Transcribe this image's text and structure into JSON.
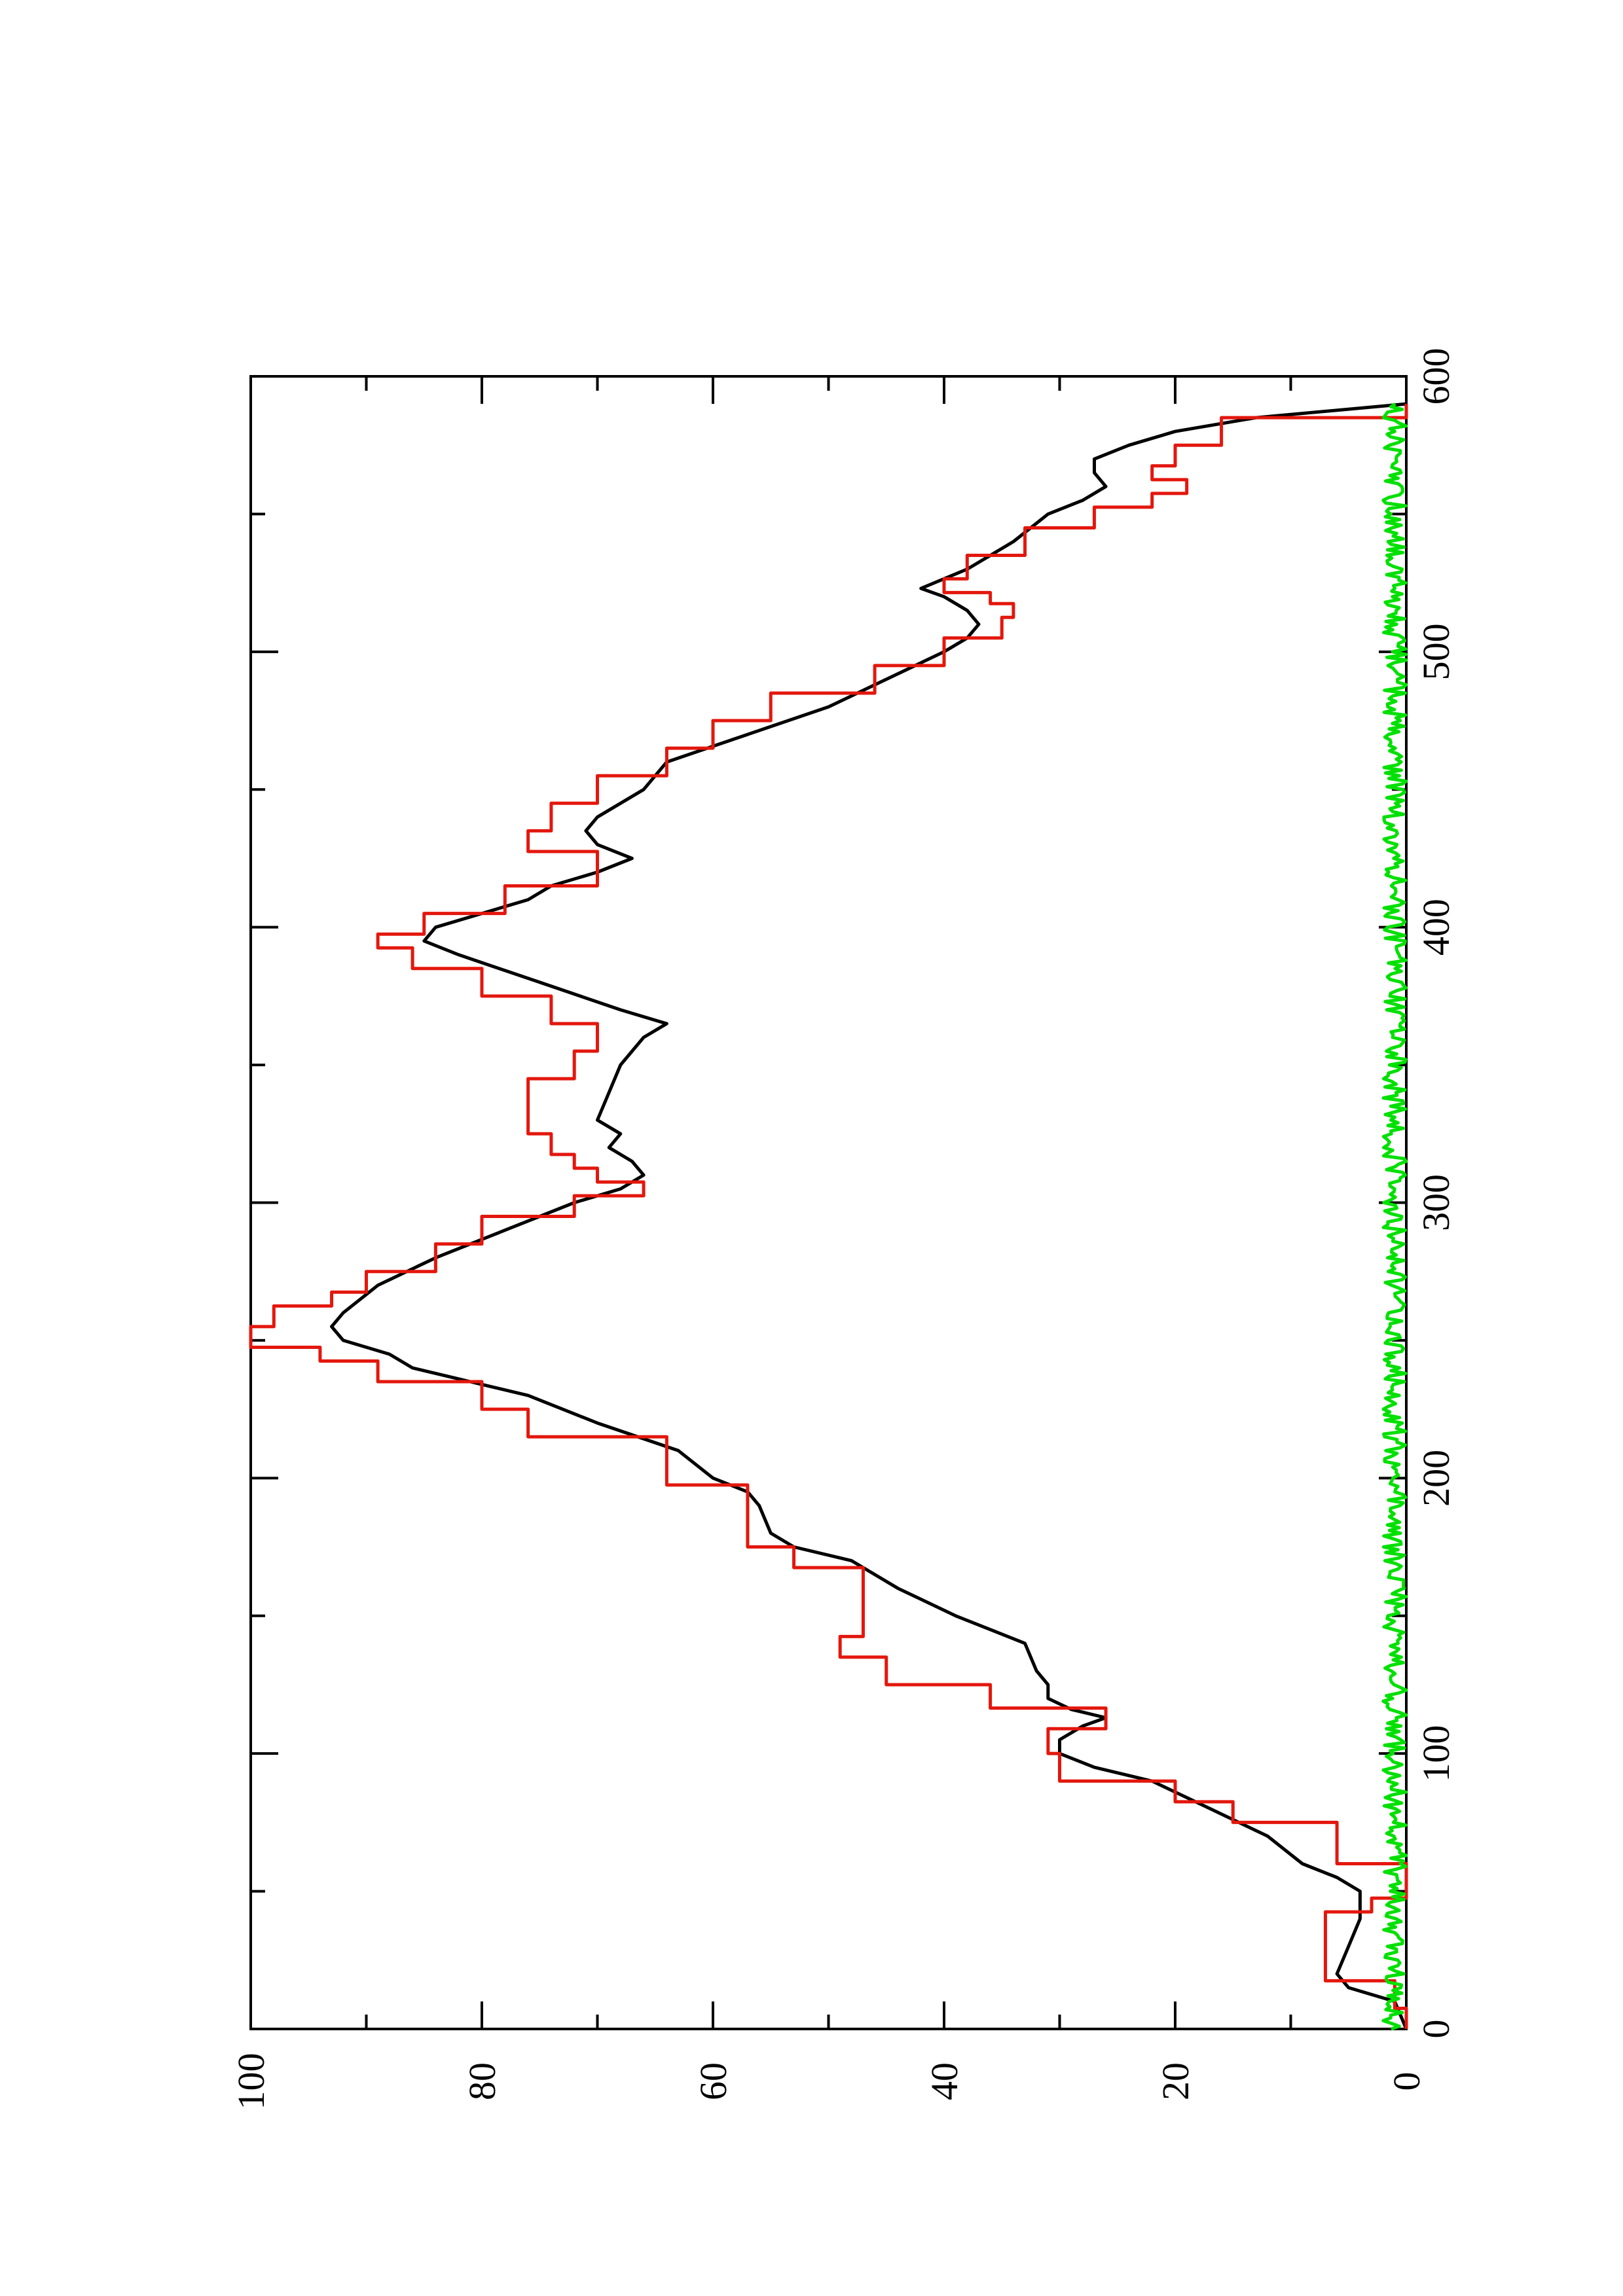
{
  "chart_data": {
    "type": "line",
    "orientation": "rotated-90-clockwise",
    "title": "",
    "xlabel": "",
    "ylabel": "",
    "xlim": [
      0,
      600
    ],
    "ylim": [
      0,
      100
    ],
    "x_ticks": [
      "0",
      "100",
      "200",
      "300",
      "400",
      "500",
      "600"
    ],
    "y_ticks": [
      "0",
      "20",
      "40",
      "60",
      "80",
      "100"
    ],
    "grid": false,
    "legend": "none",
    "series": [
      {
        "color": "#000000",
        "style": "smooth",
        "points": [
          [
            0,
            0
          ],
          [
            10,
            1
          ],
          [
            15,
            5
          ],
          [
            20,
            6
          ],
          [
            30,
            5
          ],
          [
            40,
            4
          ],
          [
            50,
            4
          ],
          [
            55,
            6
          ],
          [
            60,
            9
          ],
          [
            70,
            12
          ],
          [
            80,
            17
          ],
          [
            90,
            22
          ],
          [
            95,
            27
          ],
          [
            100,
            30
          ],
          [
            105,
            30
          ],
          [
            110,
            28
          ],
          [
            113,
            26
          ],
          [
            116,
            29
          ],
          [
            120,
            31
          ],
          [
            125,
            31
          ],
          [
            130,
            32
          ],
          [
            140,
            33
          ],
          [
            150,
            39
          ],
          [
            160,
            44
          ],
          [
            170,
            48
          ],
          [
            175,
            53
          ],
          [
            180,
            55
          ],
          [
            190,
            56
          ],
          [
            195,
            57
          ],
          [
            200,
            60
          ],
          [
            210,
            63
          ],
          [
            220,
            70
          ],
          [
            230,
            76
          ],
          [
            240,
            86
          ],
          [
            245,
            88
          ],
          [
            250,
            92
          ],
          [
            255,
            93
          ],
          [
            260,
            92
          ],
          [
            270,
            89
          ],
          [
            280,
            84
          ],
          [
            290,
            78
          ],
          [
            300,
            72
          ],
          [
            305,
            68
          ],
          [
            310,
            66
          ],
          [
            315,
            67
          ],
          [
            320,
            69
          ],
          [
            325,
            68
          ],
          [
            330,
            70
          ],
          [
            340,
            69
          ],
          [
            350,
            68
          ],
          [
            360,
            66
          ],
          [
            365,
            64
          ],
          [
            370,
            68
          ],
          [
            380,
            75
          ],
          [
            390,
            82
          ],
          [
            395,
            85
          ],
          [
            400,
            84
          ],
          [
            410,
            76
          ],
          [
            415,
            74
          ],
          [
            420,
            70
          ],
          [
            425,
            67
          ],
          [
            430,
            70
          ],
          [
            435,
            71
          ],
          [
            440,
            70
          ],
          [
            450,
            66
          ],
          [
            460,
            64
          ],
          [
            470,
            57
          ],
          [
            480,
            50
          ],
          [
            490,
            45
          ],
          [
            500,
            40
          ],
          [
            505,
            38
          ],
          [
            510,
            37
          ],
          [
            515,
            38
          ],
          [
            520,
            40
          ],
          [
            523,
            42
          ],
          [
            530,
            38
          ],
          [
            540,
            34
          ],
          [
            550,
            31
          ],
          [
            555,
            28
          ],
          [
            560,
            26
          ],
          [
            565,
            27
          ],
          [
            570,
            27
          ],
          [
            575,
            24
          ],
          [
            580,
            20
          ],
          [
            585,
            13
          ],
          [
            590,
            0
          ]
        ]
      },
      {
        "color": "#e3170d",
        "style": "steps",
        "points": [
          [
            0,
            0
          ],
          [
            15,
            1
          ],
          [
            20,
            7
          ],
          [
            40,
            7
          ],
          [
            45,
            3
          ],
          [
            50,
            0
          ],
          [
            70,
            6
          ],
          [
            80,
            15
          ],
          [
            85,
            20
          ],
          [
            95,
            30
          ],
          [
            105,
            31
          ],
          [
            113,
            26
          ],
          [
            120,
            36
          ],
          [
            130,
            45
          ],
          [
            140,
            49
          ],
          [
            145,
            47
          ],
          [
            165,
            47
          ],
          [
            170,
            53
          ],
          [
            180,
            57
          ],
          [
            195,
            57
          ],
          [
            200,
            64
          ],
          [
            210,
            64
          ],
          [
            220,
            76
          ],
          [
            230,
            80
          ],
          [
            240,
            89
          ],
          [
            245,
            94
          ],
          [
            250,
            100
          ],
          [
            260,
            98
          ],
          [
            265,
            93
          ],
          [
            270,
            90
          ],
          [
            280,
            84
          ],
          [
            290,
            80
          ],
          [
            300,
            72
          ],
          [
            305,
            66
          ],
          [
            310,
            70
          ],
          [
            315,
            72
          ],
          [
            320,
            74
          ],
          [
            330,
            76
          ],
          [
            340,
            76
          ],
          [
            350,
            72
          ],
          [
            360,
            70
          ],
          [
            370,
            74
          ],
          [
            380,
            80
          ],
          [
            390,
            86
          ],
          [
            395,
            89
          ],
          [
            400,
            85
          ],
          [
            410,
            78
          ],
          [
            420,
            70
          ],
          [
            425,
            70
          ],
          [
            430,
            76
          ],
          [
            440,
            74
          ],
          [
            450,
            70
          ],
          [
            460,
            64
          ],
          [
            470,
            60
          ],
          [
            480,
            55
          ],
          [
            490,
            46
          ],
          [
            500,
            40
          ],
          [
            510,
            35
          ],
          [
            515,
            34
          ],
          [
            520,
            36
          ],
          [
            523,
            40
          ],
          [
            530,
            38
          ],
          [
            540,
            33
          ],
          [
            550,
            27
          ],
          [
            555,
            22
          ],
          [
            560,
            19
          ],
          [
            565,
            22
          ],
          [
            570,
            20
          ],
          [
            580,
            16
          ],
          [
            590,
            0
          ]
        ]
      },
      {
        "color": "#00e000",
        "style": "noise",
        "amplitude": 2,
        "x_range": [
          0,
          590
        ]
      }
    ]
  }
}
